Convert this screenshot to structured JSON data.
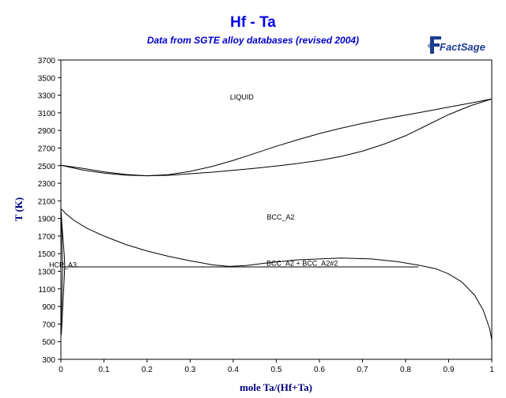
{
  "header": {
    "title": "Hf - Ta",
    "subtitle": "Data from SGTE alloy databases (revised 2004)",
    "logo_text": "FactSage"
  },
  "chart_data": {
    "type": "line",
    "title": "Hf - Ta",
    "subtitle": "Data from SGTE alloy databases (revised 2004)",
    "xlabel": "mole Ta/(Hf+Ta)",
    "ylabel": "T (K)",
    "xlim": [
      0,
      1
    ],
    "ylim": [
      300,
      3700
    ],
    "xticks": [
      0,
      0.1,
      0.2,
      0.3,
      0.4,
      0.5,
      0.6,
      0.7,
      0.8,
      0.9,
      1
    ],
    "xtick_labels": [
      "0",
      "0.1",
      "0.2",
      "0.3",
      "0.4",
      "0.5",
      "0.6",
      "0.7",
      "0.8",
      "0.9",
      "1"
    ],
    "yticks": [
      300,
      500,
      700,
      900,
      1100,
      1300,
      1500,
      1700,
      1900,
      2100,
      2300,
      2500,
      2700,
      2900,
      3100,
      3300,
      3500,
      3700
    ],
    "ytick_labels": [
      "300",
      "500",
      "700",
      "900",
      "1100",
      "1300",
      "1500",
      "1700",
      "1900",
      "2100",
      "2300",
      "2500",
      "2700",
      "2900",
      "3100",
      "3300",
      "3500",
      "3700"
    ],
    "grid": false,
    "legend": "none",
    "colors": {
      "line": "#000000",
      "title": "#0000ee",
      "axis_label": "#000080"
    },
    "series": [
      {
        "id": "liquidus",
        "values": [
          [
            0,
            2505
          ],
          [
            0.05,
            2450
          ],
          [
            0.1,
            2415
          ],
          [
            0.15,
            2393
          ],
          [
            0.2,
            2385
          ],
          [
            0.25,
            2398
          ],
          [
            0.3,
            2435
          ],
          [
            0.35,
            2490
          ],
          [
            0.4,
            2560
          ],
          [
            0.45,
            2640
          ],
          [
            0.5,
            2720
          ],
          [
            0.55,
            2795
          ],
          [
            0.6,
            2865
          ],
          [
            0.65,
            2925
          ],
          [
            0.7,
            2980
          ],
          [
            0.75,
            3030
          ],
          [
            0.8,
            3075
          ],
          [
            0.85,
            3120
          ],
          [
            0.9,
            3165
          ],
          [
            0.95,
            3210
          ],
          [
            1,
            3258
          ]
        ]
      },
      {
        "id": "solidus",
        "values": [
          [
            0,
            2505
          ],
          [
            0.05,
            2470
          ],
          [
            0.1,
            2430
          ],
          [
            0.15,
            2400
          ],
          [
            0.2,
            2385
          ],
          [
            0.25,
            2390
          ],
          [
            0.3,
            2408
          ],
          [
            0.35,
            2425
          ],
          [
            0.4,
            2448
          ],
          [
            0.45,
            2470
          ],
          [
            0.5,
            2495
          ],
          [
            0.55,
            2525
          ],
          [
            0.6,
            2560
          ],
          [
            0.65,
            2605
          ],
          [
            0.7,
            2665
          ],
          [
            0.75,
            2745
          ],
          [
            0.8,
            2840
          ],
          [
            0.85,
            2960
          ],
          [
            0.9,
            3080
          ],
          [
            0.95,
            3180
          ],
          [
            1,
            3258
          ]
        ]
      },
      {
        "id": "bcc-miscibility",
        "values": [
          [
            0,
            2010
          ],
          [
            0.005,
            1990
          ],
          [
            0.01,
            1960
          ],
          [
            0.03,
            1880
          ],
          [
            0.06,
            1790
          ],
          [
            0.1,
            1700
          ],
          [
            0.15,
            1605
          ],
          [
            0.2,
            1530
          ],
          [
            0.25,
            1470
          ],
          [
            0.3,
            1420
          ],
          [
            0.35,
            1375
          ],
          [
            0.39,
            1355
          ],
          [
            0.43,
            1365
          ],
          [
            0.48,
            1395
          ],
          [
            0.55,
            1430
          ],
          [
            0.65,
            1450
          ],
          [
            0.72,
            1440
          ],
          [
            0.78,
            1410
          ],
          [
            0.83,
            1370
          ],
          [
            0.87,
            1330
          ],
          [
            0.9,
            1270
          ],
          [
            0.93,
            1180
          ],
          [
            0.96,
            1030
          ],
          [
            0.98,
            860
          ],
          [
            0.995,
            650
          ],
          [
            1,
            520
          ]
        ]
      },
      {
        "id": "hcp-solvus-outer",
        "values": [
          [
            0,
            2010
          ],
          [
            0.003,
            1800
          ],
          [
            0.006,
            1600
          ],
          [
            0.008,
            1460
          ],
          [
            0.009,
            1350
          ],
          [
            0.007,
            1150
          ],
          [
            0.005,
            950
          ],
          [
            0.003,
            750
          ],
          [
            0.001,
            580
          ]
        ]
      },
      {
        "id": "hcp-solvus-inner",
        "values": [
          [
            0,
            2010
          ],
          [
            0.002,
            1750
          ],
          [
            0.003,
            1500
          ],
          [
            0.004,
            1350
          ],
          [
            0.003,
            1150
          ],
          [
            0.002,
            950
          ],
          [
            0.001,
            750
          ],
          [
            0,
            580
          ]
        ]
      },
      {
        "id": "monotectoid-line",
        "values": [
          [
            0,
            1350
          ],
          [
            0.83,
            1350
          ]
        ]
      }
    ],
    "annotations": [
      {
        "id": "liquid",
        "text": "LIQUID",
        "x": 0.42,
        "y": 3250
      },
      {
        "id": "bcc-a2",
        "text": "BCC_A2",
        "x": 0.51,
        "y": 1890
      },
      {
        "id": "bcc-two-phase",
        "text": "BCC_A2 + BCC_A2#2",
        "x": 0.56,
        "y": 1365
      },
      {
        "id": "hcp-a3",
        "text": "HCP_A3",
        "x": 0.0,
        "y": 1365
      }
    ]
  }
}
